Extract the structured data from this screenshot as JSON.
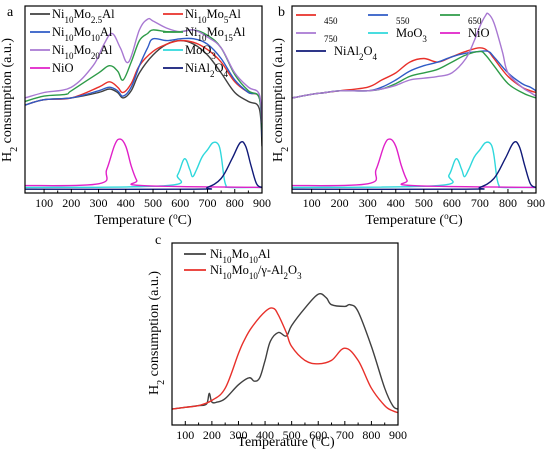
{
  "chart_data": [
    {
      "panel": "a",
      "type": "line",
      "xlabel": "Temperature (°C)",
      "ylabel": "H2 consumption (a.u.)",
      "xlim": [
        30,
        900
      ],
      "xticks": [
        100,
        200,
        300,
        400,
        500,
        600,
        700,
        800,
        900
      ],
      "y_ticks_shown": false,
      "legend_position": "top",
      "series": [
        {
          "name": "Ni10Mo2.5Al",
          "color": "#404040",
          "x": [
            30,
            100,
            200,
            300,
            340,
            370,
            390,
            420,
            450,
            500,
            550,
            600,
            650,
            700,
            750,
            800,
            850,
            890,
            900
          ],
          "y": [
            0.48,
            0.51,
            0.52,
            0.55,
            0.57,
            0.55,
            0.52,
            0.56,
            0.66,
            0.76,
            0.82,
            0.84,
            0.82,
            0.76,
            0.66,
            0.55,
            0.5,
            0.46,
            0.25
          ]
        },
        {
          "name": "Ni10Mo5Al",
          "color": "#e8302a",
          "x": [
            30,
            100,
            200,
            300,
            340,
            370,
            390,
            420,
            450,
            500,
            550,
            600,
            650,
            700,
            750,
            800,
            850,
            890,
            900
          ],
          "y": [
            0.48,
            0.51,
            0.52,
            0.58,
            0.61,
            0.58,
            0.55,
            0.6,
            0.7,
            0.78,
            0.82,
            0.84,
            0.83,
            0.79,
            0.72,
            0.61,
            0.55,
            0.52,
            0.33
          ]
        },
        {
          "name": "Ni10Mo10Al",
          "color": "#2f5bc6",
          "x": [
            30,
            100,
            200,
            300,
            340,
            370,
            390,
            420,
            450,
            480,
            500,
            550,
            600,
            650,
            700,
            750,
            800,
            850,
            890,
            900
          ],
          "y": [
            0.48,
            0.51,
            0.52,
            0.56,
            0.58,
            0.56,
            0.53,
            0.58,
            0.7,
            0.8,
            0.85,
            0.84,
            0.85,
            0.85,
            0.82,
            0.74,
            0.62,
            0.55,
            0.52,
            0.3
          ]
        },
        {
          "name": "Ni10Mo15Al",
          "color": "#2e9b48",
          "x": [
            30,
            100,
            180,
            200,
            300,
            340,
            370,
            390,
            420,
            450,
            480,
            500,
            550,
            600,
            650,
            700,
            750,
            800,
            850,
            890,
            900
          ],
          "y": [
            0.5,
            0.53,
            0.54,
            0.56,
            0.66,
            0.7,
            0.67,
            0.62,
            0.72,
            0.84,
            0.88,
            0.9,
            0.89,
            0.89,
            0.9,
            0.87,
            0.8,
            0.65,
            0.56,
            0.52,
            0.34
          ]
        },
        {
          "name": "Ni10Mo20Al",
          "color": "#a878d2",
          "x": [
            30,
            100,
            200,
            280,
            320,
            350,
            380,
            410,
            450,
            480,
            500,
            550,
            600,
            650,
            700,
            750,
            800,
            850,
            890,
            900
          ],
          "y": [
            0.52,
            0.55,
            0.58,
            0.7,
            0.82,
            0.88,
            0.8,
            0.72,
            0.9,
            0.96,
            0.95,
            0.91,
            0.89,
            0.9,
            0.86,
            0.8,
            0.66,
            0.58,
            0.54,
            0.38
          ]
        },
        {
          "name": "MoO3",
          "color": "#2fd8dc",
          "x": [
            30,
            550,
            590,
            615,
            635,
            645,
            660,
            680,
            700,
            720,
            740,
            750,
            760,
            768,
            780,
            900
          ],
          "y": [
            0.02,
            0.03,
            0.09,
            0.18,
            0.12,
            0.08,
            0.12,
            0.19,
            0.23,
            0.27,
            0.26,
            0.2,
            0.08,
            0.03,
            0.02,
            0.02
          ]
        },
        {
          "name": "NiO",
          "color": "#e020c8",
          "x": [
            30,
            300,
            330,
            360,
            380,
            400,
            420,
            440,
            460,
            900
          ],
          "y": [
            0.03,
            0.04,
            0.12,
            0.26,
            0.29,
            0.25,
            0.14,
            0.06,
            0.03,
            0.02
          ]
        },
        {
          "name": "NiAl2O4",
          "color": "#101a78",
          "x": [
            30,
            650,
            700,
            750,
            790,
            820,
            840,
            860,
            880,
            900
          ],
          "y": [
            0.01,
            0.01,
            0.02,
            0.07,
            0.18,
            0.27,
            0.25,
            0.14,
            0.04,
            0.02
          ]
        }
      ]
    },
    {
      "panel": "b",
      "type": "line",
      "xlabel": "Temperature (°C)",
      "ylabel": "H2 consumption (a.u.)",
      "xlim": [
        30,
        900
      ],
      "xticks": [
        100,
        200,
        300,
        400,
        500,
        600,
        700,
        800,
        900
      ],
      "y_ticks_shown": false,
      "legend_position": "top",
      "series": [
        {
          "name": "450",
          "color": "#e8302a",
          "x": [
            30,
            100,
            150,
            200,
            300,
            350,
            400,
            450,
            500,
            550,
            600,
            650,
            700,
            730,
            750,
            800,
            850,
            880,
            900
          ],
          "y": [
            0.52,
            0.54,
            0.55,
            0.56,
            0.58,
            0.62,
            0.66,
            0.72,
            0.74,
            0.72,
            0.75,
            0.78,
            0.8,
            0.78,
            0.74,
            0.64,
            0.58,
            0.56,
            0.55
          ]
        },
        {
          "name": "550",
          "color": "#2f5bc6",
          "x": [
            30,
            100,
            150,
            200,
            300,
            350,
            400,
            450,
            500,
            550,
            600,
            650,
            700,
            730,
            750,
            800,
            850,
            880,
            900
          ],
          "y": [
            0.52,
            0.54,
            0.55,
            0.56,
            0.56,
            0.58,
            0.62,
            0.67,
            0.7,
            0.72,
            0.75,
            0.77,
            0.78,
            0.78,
            0.75,
            0.66,
            0.6,
            0.58,
            0.56
          ]
        },
        {
          "name": "650",
          "color": "#2e9b48",
          "x": [
            30,
            100,
            150,
            200,
            300,
            350,
            400,
            450,
            500,
            550,
            600,
            650,
            700,
            720,
            750,
            800,
            850,
            880,
            900
          ],
          "y": [
            0.52,
            0.54,
            0.55,
            0.56,
            0.56,
            0.57,
            0.6,
            0.64,
            0.66,
            0.68,
            0.72,
            0.76,
            0.78,
            0.76,
            0.7,
            0.6,
            0.55,
            0.53,
            0.52
          ]
        },
        {
          "name": "750",
          "color": "#a878d2",
          "x": [
            30,
            100,
            150,
            200,
            300,
            350,
            400,
            450,
            500,
            550,
            600,
            650,
            680,
            700,
            720,
            730,
            750,
            780,
            800,
            850,
            880,
            900
          ],
          "y": [
            0.52,
            0.54,
            0.55,
            0.56,
            0.56,
            0.57,
            0.59,
            0.62,
            0.63,
            0.64,
            0.66,
            0.74,
            0.84,
            0.92,
            0.98,
            0.99,
            0.94,
            0.78,
            0.66,
            0.58,
            0.55,
            0.53
          ]
        },
        {
          "name": "MoO3",
          "color": "#2fd8dc",
          "x": [
            30,
            550,
            590,
            615,
            635,
            645,
            660,
            680,
            700,
            720,
            740,
            750,
            760,
            768,
            780,
            900
          ],
          "y": [
            0.02,
            0.03,
            0.09,
            0.18,
            0.12,
            0.08,
            0.12,
            0.19,
            0.23,
            0.27,
            0.26,
            0.2,
            0.08,
            0.03,
            0.02,
            0.02
          ]
        },
        {
          "name": "NiO",
          "color": "#e020c8",
          "x": [
            30,
            300,
            330,
            360,
            380,
            400,
            420,
            440,
            460,
            900
          ],
          "y": [
            0.03,
            0.04,
            0.12,
            0.26,
            0.29,
            0.25,
            0.14,
            0.06,
            0.03,
            0.02
          ]
        },
        {
          "name": "NiAl2O4",
          "color": "#101a78",
          "x": [
            30,
            650,
            700,
            750,
            790,
            820,
            840,
            860,
            880,
            900
          ],
          "y": [
            0.01,
            0.01,
            0.02,
            0.07,
            0.18,
            0.27,
            0.25,
            0.14,
            0.04,
            0.02
          ]
        }
      ]
    },
    {
      "panel": "c",
      "type": "line",
      "xlabel": "Temperature (°C)",
      "ylabel": "H2 consumption (a.u.)",
      "xlim": [
        50,
        900
      ],
      "xticks": [
        100,
        200,
        300,
        400,
        500,
        600,
        700,
        800,
        900
      ],
      "y_ticks_shown": false,
      "legend_position": "top-left",
      "series": [
        {
          "name": "Ni10Mo10Al",
          "color": "#404040",
          "x": [
            50,
            100,
            150,
            180,
            190,
            200,
            220,
            250,
            300,
            340,
            360,
            380,
            400,
            420,
            450,
            480,
            500,
            550,
            600,
            630,
            650,
            700,
            720,
            750,
            800,
            850,
            880,
            900
          ],
          "y": [
            0.08,
            0.09,
            0.1,
            0.11,
            0.17,
            0.12,
            0.12,
            0.14,
            0.22,
            0.26,
            0.24,
            0.26,
            0.36,
            0.47,
            0.52,
            0.5,
            0.56,
            0.66,
            0.74,
            0.72,
            0.68,
            0.67,
            0.68,
            0.64,
            0.44,
            0.2,
            0.1,
            0.08
          ]
        },
        {
          "name": "Ni10Mo10/γ-Al2O3",
          "color": "#e8302a",
          "x": [
            50,
            100,
            150,
            200,
            250,
            300,
            320,
            350,
            400,
            430,
            450,
            480,
            500,
            550,
            600,
            650,
            700,
            750,
            800,
            850,
            880,
            900
          ],
          "y": [
            0.08,
            0.09,
            0.1,
            0.13,
            0.2,
            0.4,
            0.47,
            0.55,
            0.64,
            0.66,
            0.62,
            0.52,
            0.44,
            0.36,
            0.34,
            0.36,
            0.43,
            0.36,
            0.2,
            0.1,
            0.07,
            0.06
          ]
        }
      ]
    }
  ],
  "panels": {
    "a": {
      "letter": "a",
      "xlabel": "Temperature (°C)",
      "ylabel": "H2 consumption (a.u.)"
    },
    "b": {
      "letter": "b",
      "xlabel": "Temperature (°C)",
      "ylabel": "H2 consumption (a.u.)"
    },
    "c": {
      "letter": "c",
      "xlabel": "Temperature (°C)",
      "ylabel": "H2 consumption (a.u.)"
    }
  }
}
